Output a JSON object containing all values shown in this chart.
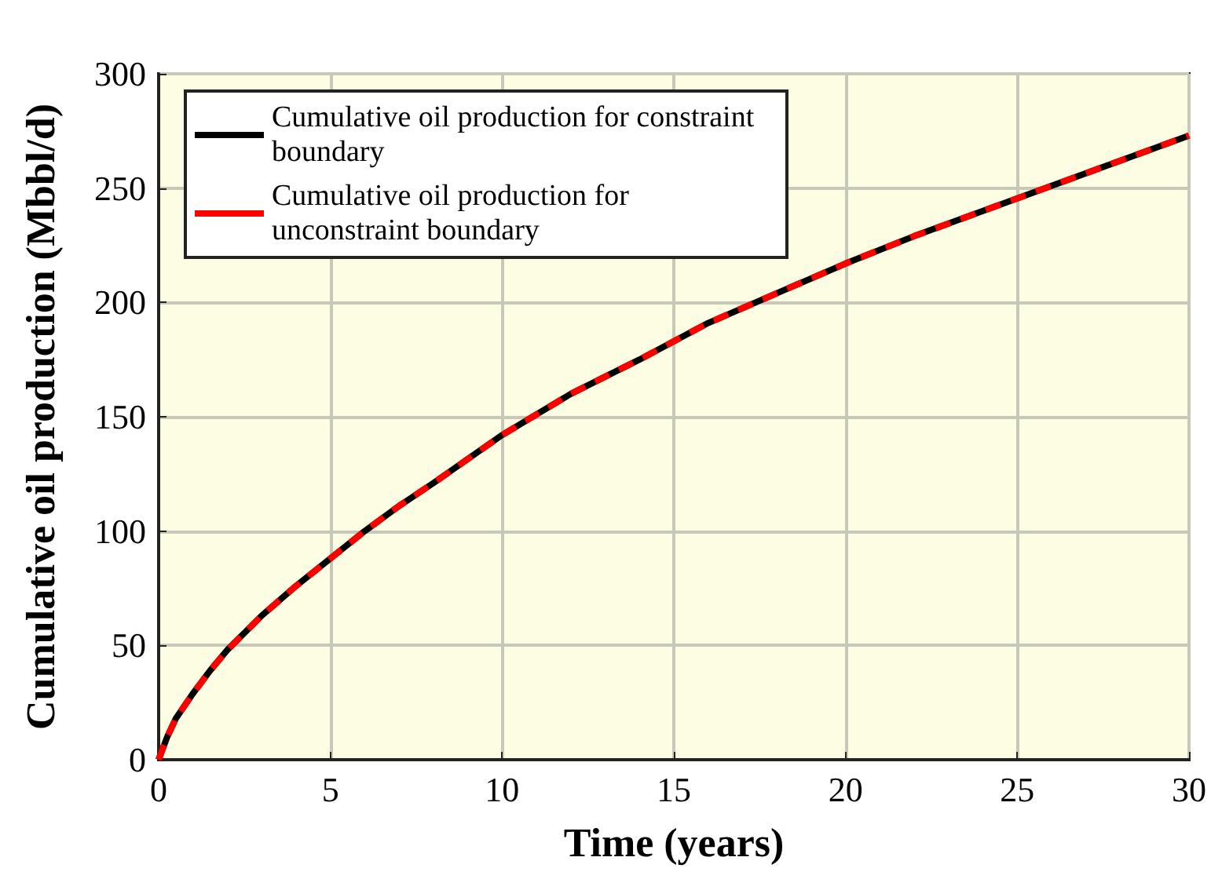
{
  "chart_data": {
    "type": "line",
    "xlabel": "Time (years)",
    "ylabel": "Cumulative oil production (Mbbl/d)",
    "x": [
      0,
      0.25,
      0.5,
      1,
      1.5,
      2,
      3,
      4,
      5,
      6,
      7,
      8,
      10,
      12,
      14,
      16,
      18,
      20,
      22,
      24,
      26,
      28,
      30
    ],
    "series": [
      {
        "name": "Cumulative oil production for constraint boundary",
        "color": "#000000",
        "line_style": "solid",
        "values": [
          0,
          10,
          18,
          29,
          39,
          48,
          63,
          76,
          88,
          100,
          111,
          121,
          142,
          160,
          175,
          191,
          204,
          217,
          229,
          240,
          251,
          262,
          273
        ]
      },
      {
        "name": "Cumulative oil production for unconstraint boundary",
        "color": "#ff0000",
        "line_style": "dashed",
        "values": [
          0,
          10,
          18,
          29,
          39,
          48,
          63,
          76,
          88,
          100,
          111,
          121,
          142,
          160,
          175,
          191,
          204,
          217,
          229,
          240,
          251,
          262,
          273
        ]
      }
    ],
    "xlim": [
      0,
      30
    ],
    "xticks": [
      0,
      5,
      10,
      15,
      20,
      25,
      30
    ],
    "ylim": [
      0,
      300
    ],
    "yticks": [
      0,
      50,
      100,
      150,
      200,
      250,
      300
    ],
    "grid": true,
    "legend": "top left",
    "marker": "none"
  }
}
